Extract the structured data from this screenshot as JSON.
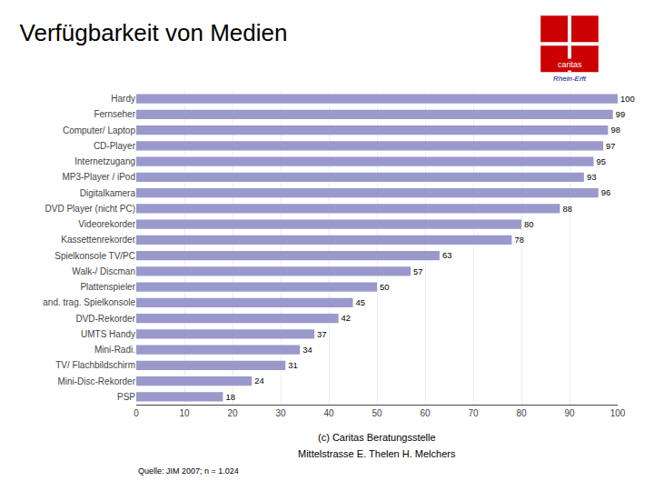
{
  "chart_data": {
    "type": "bar",
    "orientation": "horizontal",
    "title": "Verfügbarkeit von Medien",
    "categories": [
      "Hardy",
      "Fernseher",
      "Computer/ Laptop",
      "CD-Player",
      "Internetzugang",
      "MP3-Player / iPod",
      "Digitalkamera",
      "DVD Player (nicht PC)",
      "Videorekorder",
      "Kassettenrekorder",
      "Spielkonsole TV/PC",
      "Walk-/ Discman",
      "Plattenspieler",
      "and. trag. Spielkonsole",
      "DVD-Rekorder",
      "UMTS Handy",
      "Mini-Radi.",
      "TV/ Flachbildschirm",
      "Mini-Disc-Rekorder",
      "PSP"
    ],
    "values": [
      100,
      99,
      98,
      97,
      95,
      93,
      96,
      88,
      80,
      78,
      63,
      57,
      50,
      45,
      42,
      37,
      34,
      31,
      24,
      18
    ],
    "color": "#9999cc",
    "xlim": [
      0,
      100
    ],
    "xticks": [
      0,
      10,
      20,
      30,
      40,
      50,
      60,
      70,
      80,
      90,
      100
    ],
    "grid": true,
    "data_labels": true,
    "annotations": [
      "Quelle: JIM 2007; n = 1.024",
      "(c) Caritas Beratungsstelle",
      "Mittelstrasse E. Thelen H. Melchers",
      "caritas",
      "Rhein-Erft"
    ]
  }
}
